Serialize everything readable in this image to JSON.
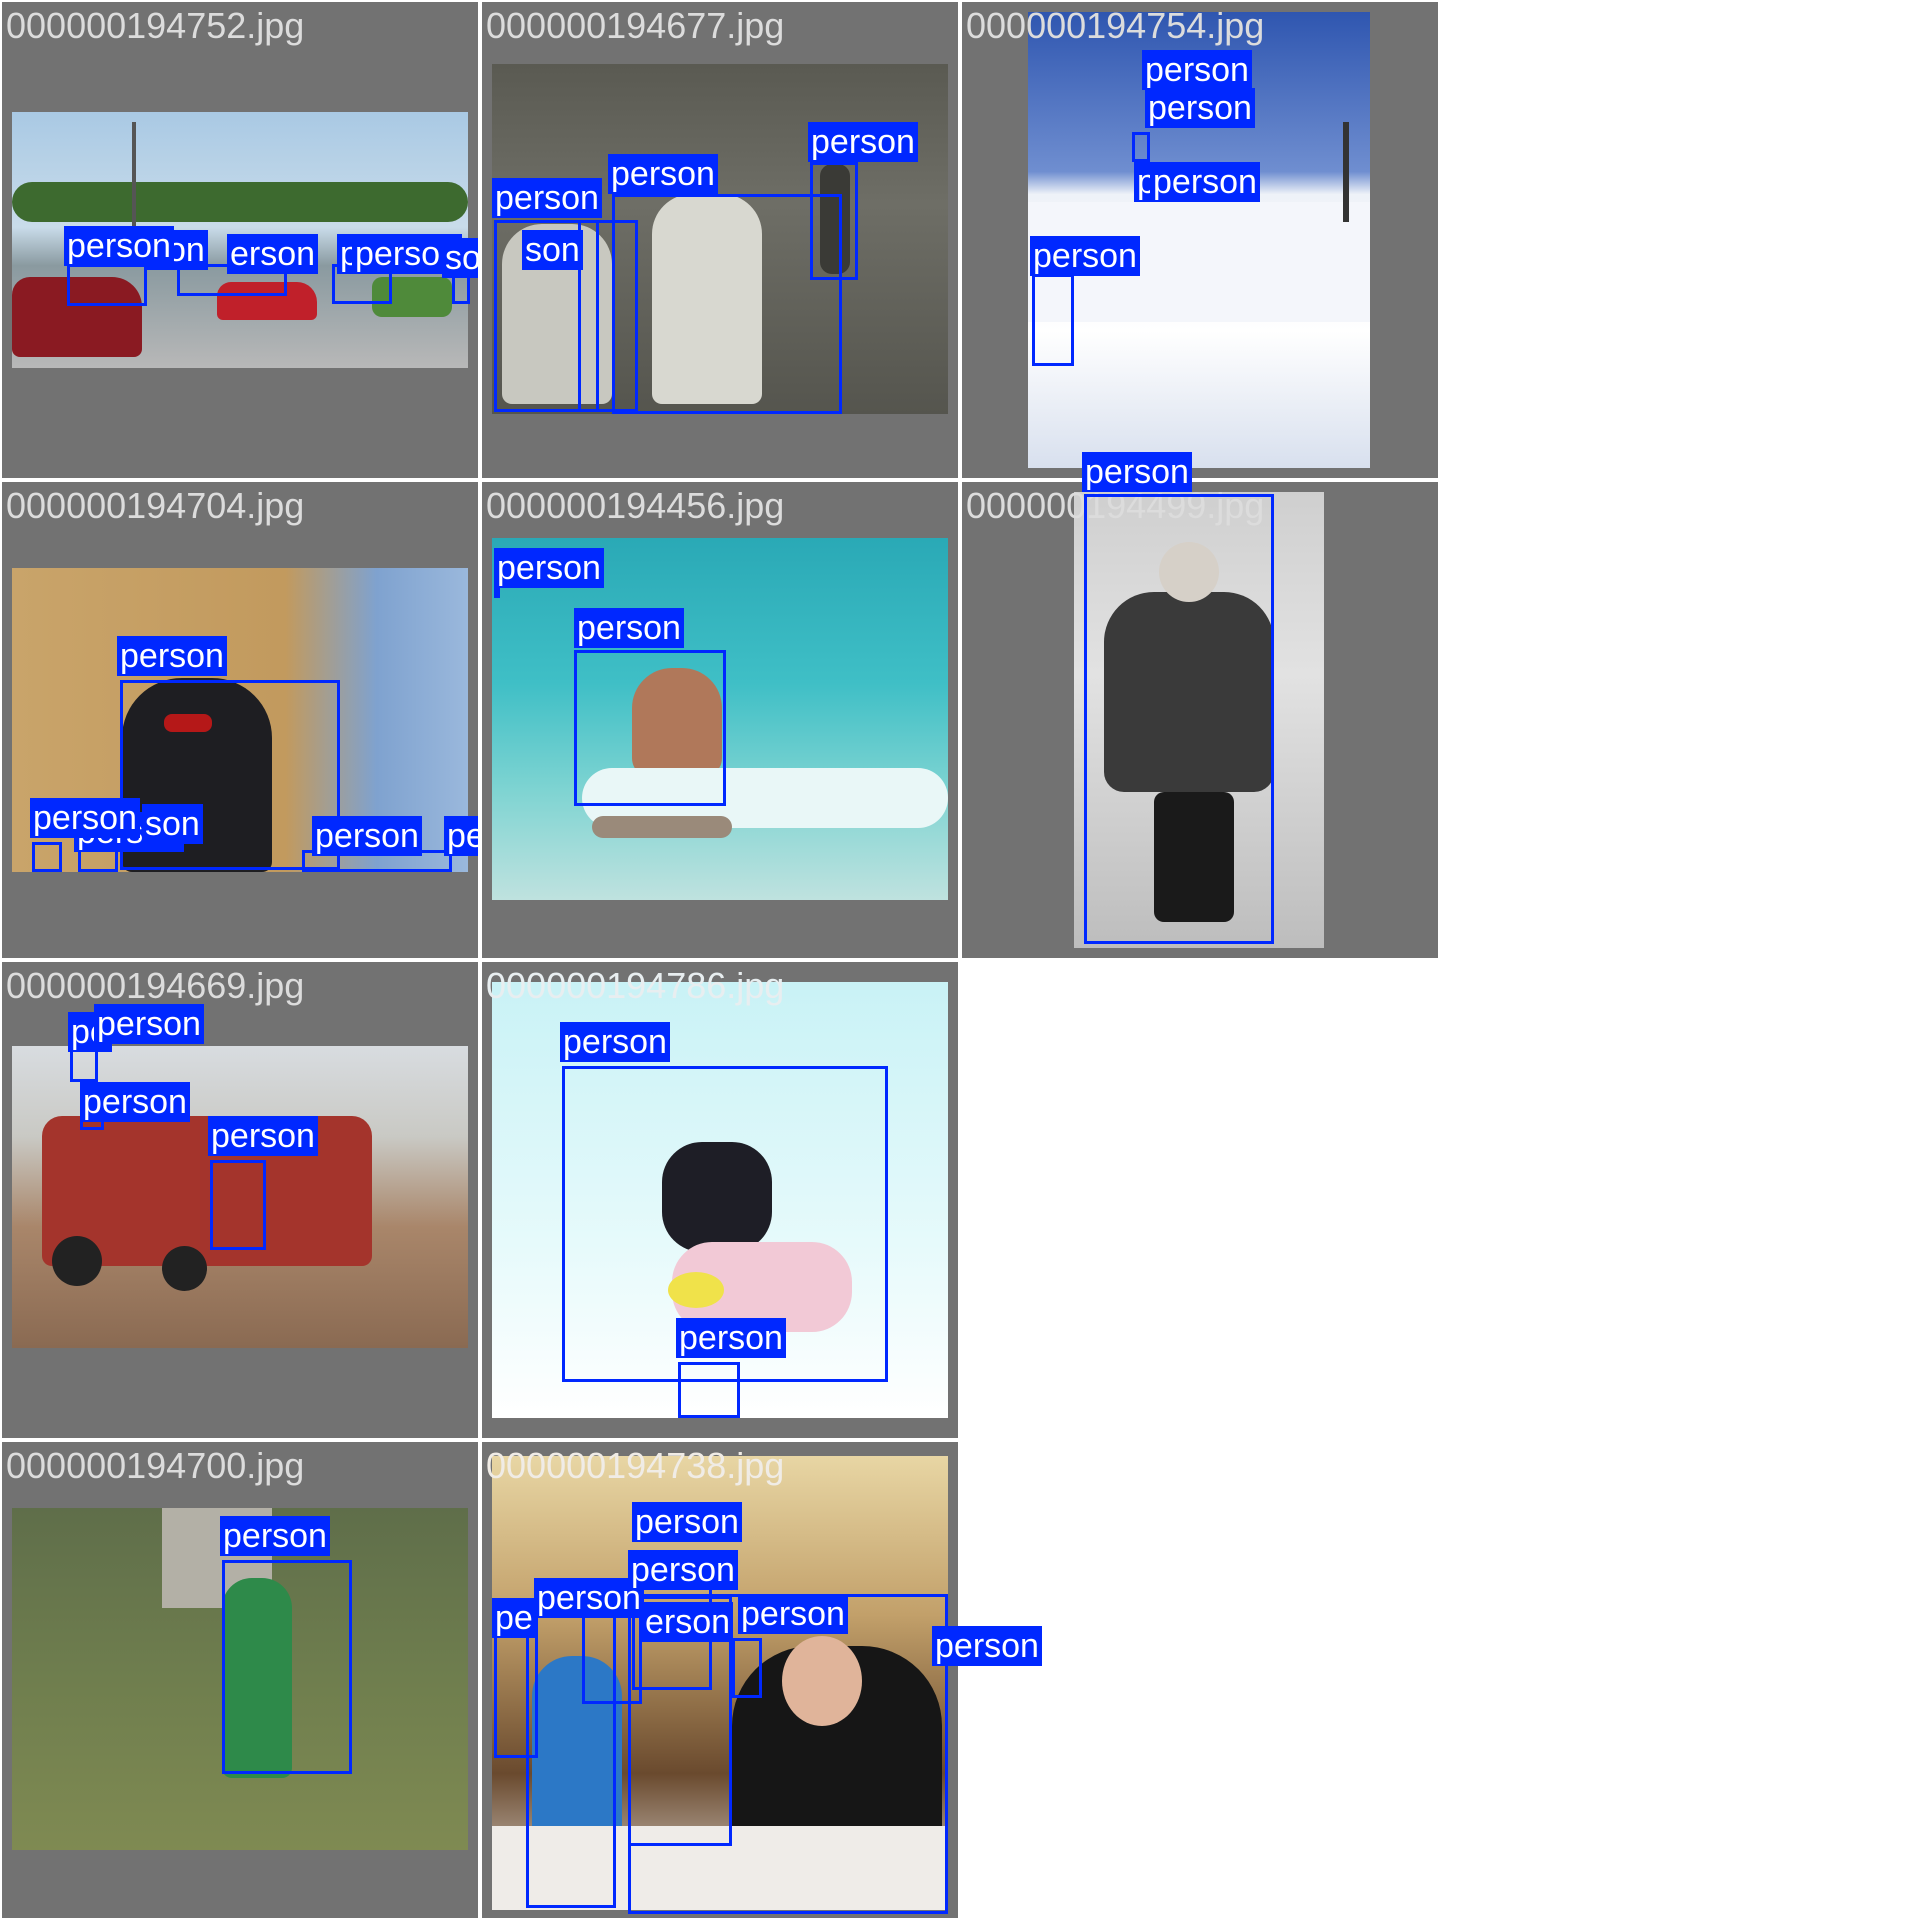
{
  "colors": {
    "tile_bg": "#727272",
    "box": "#0028ff",
    "label_text": "#ffffff",
    "filename_text": "#dcdcdc"
  },
  "tiles": [
    {
      "file": "000000194752.jpg",
      "labels": [
        "person",
        "son",
        "erson",
        "person",
        "person",
        "son",
        "son"
      ]
    },
    {
      "file": "000000194677.jpg",
      "labels": [
        "person",
        "person",
        "person",
        "son"
      ]
    },
    {
      "file": "000000194754.jpg",
      "labels": [
        "person",
        "person",
        "p",
        "person",
        "person"
      ]
    },
    {
      "file": "000000194704.jpg",
      "labels": [
        "person",
        "person",
        "person",
        "son",
        "person",
        "person"
      ]
    },
    {
      "file": "000000194456.jpg",
      "labels": [
        "person",
        "person"
      ]
    },
    {
      "file": "000000194499.jpg",
      "labels": [
        "person"
      ]
    },
    {
      "file": "000000194669.jpg",
      "labels": [
        "pe",
        "person",
        "person",
        "person"
      ]
    },
    {
      "file": "000000194786.jpg",
      "labels": [
        "person",
        "person"
      ]
    },
    {
      "file": "000000194700.jpg",
      "labels": [
        "person"
      ]
    },
    {
      "file": "000000194738.jpg",
      "labels": [
        "person",
        "person",
        "person",
        "pe",
        "erson",
        "person",
        "person"
      ]
    }
  ]
}
